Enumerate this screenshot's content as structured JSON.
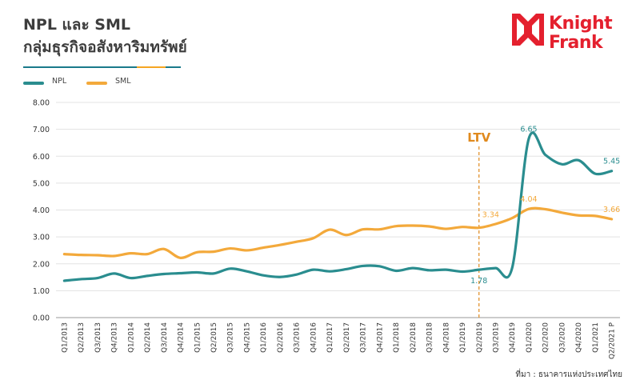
{
  "header": {
    "title_line1": "NPL และ SML",
    "title_line2": "กลุ่มธุรกิจอสังหาริมทรัพย์",
    "rule_colors": [
      "#1a7a8a",
      "#1a7a8a",
      "#f5a623",
      "#1a7a8a"
    ]
  },
  "logo": {
    "line1": "Knight",
    "line2": "Frank",
    "color": "#e4202e"
  },
  "source": "ที่มา : ธนาคารแห่งประเทศไทย",
  "chart_data": {
    "type": "line",
    "categories": [
      "Q1/2013",
      "Q2/2013",
      "Q3/2013",
      "Q4/2013",
      "Q1/2014",
      "Q2/2014",
      "Q3/2014",
      "Q4/2014",
      "Q1/2015",
      "Q2/2015",
      "Q3/2015",
      "Q4/2015",
      "Q1/2016",
      "Q2/2016",
      "Q3/2016",
      "Q4/2016",
      "Q1/2017",
      "Q2/2017",
      "Q3/2017",
      "Q4/2017",
      "Q1/2018",
      "Q2/2018",
      "Q3/2018",
      "Q4/2018",
      "Q1/2019",
      "Q2/2019",
      "Q3/2019",
      "Q4/2019",
      "Q1/2020",
      "Q2/2020",
      "Q3/2020",
      "Q4/2020",
      "Q1/2021",
      "Q2/2021 P"
    ],
    "series": [
      {
        "name": "NPL",
        "color": "#2a8d8f",
        "values": [
          1.37,
          1.43,
          1.47,
          1.64,
          1.47,
          1.55,
          1.62,
          1.65,
          1.68,
          1.64,
          1.82,
          1.72,
          1.57,
          1.51,
          1.6,
          1.78,
          1.72,
          1.8,
          1.92,
          1.91,
          1.74,
          1.84,
          1.76,
          1.78,
          1.71,
          1.78,
          1.84,
          1.85,
          6.65,
          6.05,
          5.7,
          5.85,
          5.35,
          5.45
        ]
      },
      {
        "name": "SML",
        "color": "#f3a93b",
        "values": [
          2.36,
          2.33,
          2.32,
          2.29,
          2.39,
          2.36,
          2.55,
          2.22,
          2.43,
          2.45,
          2.57,
          2.5,
          2.6,
          2.7,
          2.82,
          2.95,
          3.27,
          3.07,
          3.28,
          3.28,
          3.4,
          3.42,
          3.39,
          3.3,
          3.37,
          3.34,
          3.48,
          3.7,
          4.04,
          4.03,
          3.9,
          3.8,
          3.78,
          3.66
        ]
      }
    ],
    "ylim": [
      0,
      8
    ],
    "yticks": [
      "0.00",
      "1.00",
      "2.00",
      "3.00",
      "4.00",
      "5.00",
      "6.00",
      "7.00",
      "8.00"
    ],
    "grid": true,
    "legend": "top-left",
    "annotations": [
      {
        "series": "NPL",
        "category": "Q2/2019",
        "label": "1.78",
        "pos": "below"
      },
      {
        "series": "NPL",
        "category": "Q1/2020",
        "label": "6.65",
        "pos": "above"
      },
      {
        "series": "NPL",
        "category": "Q2/2021 P",
        "label": "5.45",
        "pos": "above"
      },
      {
        "series": "SML",
        "category": "Q2/2019",
        "label": "3.34",
        "pos": "above-right"
      },
      {
        "series": "SML",
        "category": "Q1/2020",
        "label": "4.04",
        "pos": "above"
      },
      {
        "series": "SML",
        "category": "Q2/2021 P",
        "label": "3.66",
        "pos": "above"
      }
    ],
    "marker_line": {
      "category": "Q2/2019",
      "label": "LTV",
      "color": "#e08a1e"
    }
  }
}
